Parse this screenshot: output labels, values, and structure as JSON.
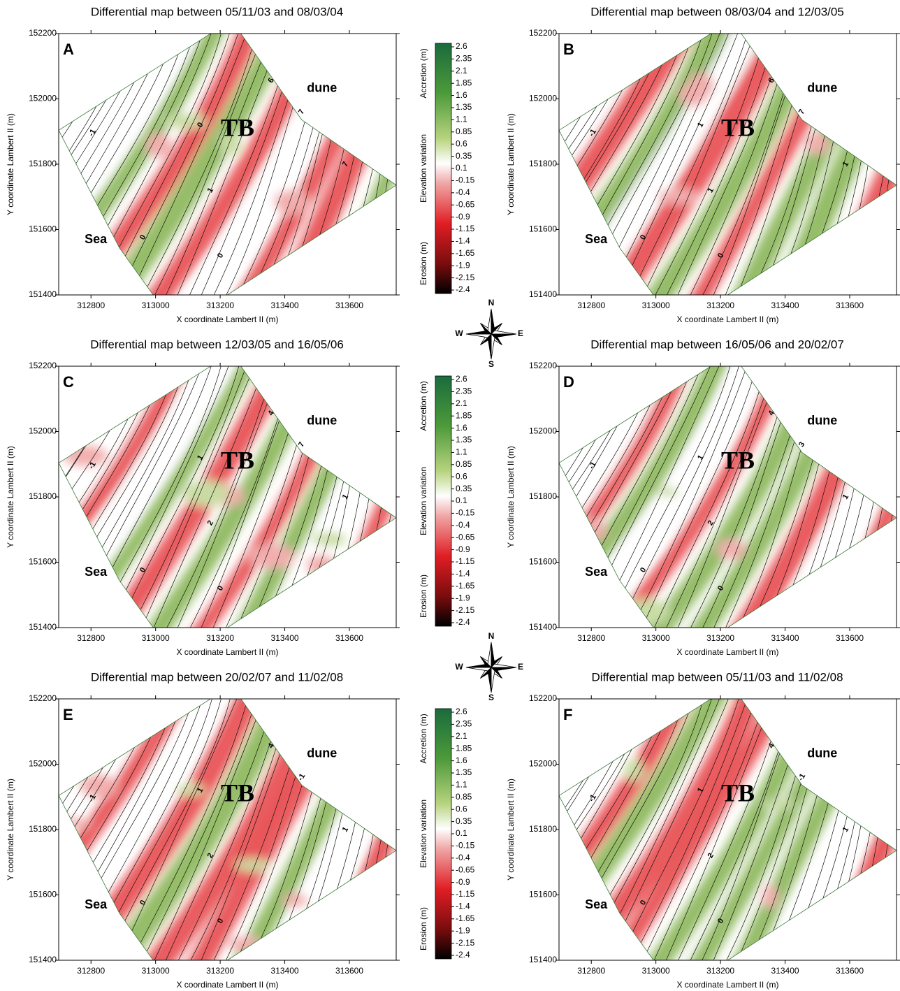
{
  "axes": {
    "xlabel": "X coordinate Lambert II (m)",
    "ylabel": "Y coordinate Lambert II (m)",
    "xlim": [
      312700,
      313745
    ],
    "ylim": [
      151400,
      152200
    ],
    "xticks": [
      312800,
      313000,
      313200,
      313400,
      313600
    ],
    "yticks": [
      151400,
      151600,
      151800,
      152000,
      152200
    ]
  },
  "colorbar": {
    "ticks": [
      2.6,
      2.35,
      2.1,
      1.85,
      1.6,
      1.35,
      1.1,
      0.85,
      0.6,
      0.35,
      0.1,
      -0.15,
      -0.4,
      -0.65,
      -0.9,
      -1.15,
      -1.4,
      -1.65,
      -1.9,
      -2.15,
      -2.4
    ],
    "labels": [
      "Accretion (m)",
      "Elevation variation",
      "Erosion (m)"
    ]
  },
  "compass": {
    "north": "N",
    "west": "W",
    "east": "E",
    "south": "S"
  },
  "panels": [
    {
      "letter": "A",
      "title": "Differential map between 05/11/03 and 08/03/04",
      "annotations": [
        "TB",
        "dune",
        "Sea"
      ],
      "contour_labels": [
        -1,
        0,
        0,
        1,
        0,
        6,
        7,
        7
      ]
    },
    {
      "letter": "B",
      "title": "Differential map between 08/03/04 and 12/03/05",
      "annotations": [
        "TB",
        "dune",
        "Sea"
      ],
      "contour_labels": [
        -1,
        0,
        1,
        1,
        0,
        6,
        7,
        1
      ]
    },
    {
      "letter": "C",
      "title": "Differential map between 12/03/05 and 16/05/06",
      "annotations": [
        "TB",
        "dune",
        "Sea"
      ],
      "contour_labels": [
        -1,
        0,
        1,
        2,
        0,
        4,
        7,
        1
      ]
    },
    {
      "letter": "D",
      "title": "Differential map between 16/05/06 and 20/02/07",
      "annotations": [
        "TB",
        "dune",
        "Sea"
      ],
      "contour_labels": [
        -1,
        0,
        1,
        2,
        0,
        4,
        3,
        1
      ]
    },
    {
      "letter": "E",
      "title": "Differential map between 20/02/07 and 11/02/08",
      "annotations": [
        "TB",
        "dune",
        "Sea"
      ],
      "contour_labels": [
        -1,
        0,
        1,
        2,
        0,
        4,
        -1,
        1
      ]
    },
    {
      "letter": "F",
      "title": "Differential map between 05/11/03 and 11/02/08",
      "annotations": [
        "TB",
        "dune",
        "Sea"
      ],
      "contour_labels": [
        -1,
        0,
        1,
        2,
        0,
        4,
        -1,
        1
      ]
    }
  ]
}
